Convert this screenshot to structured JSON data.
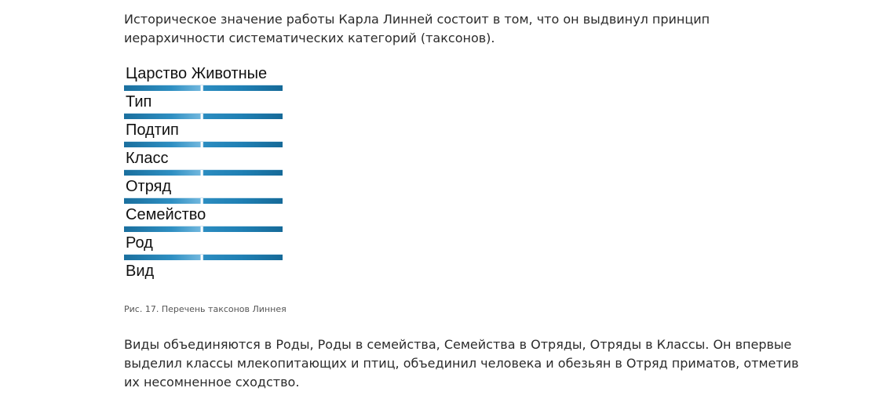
{
  "intro_paragraph": "Историческое значение работы Карла Линней состоит в том, что он выдвинул принцип иерархичности систематических категорий (таксонов).",
  "figure": {
    "taxa": [
      "Царство Животные",
      "Тип",
      "Подтип",
      "Класс",
      "Отряд",
      "Семейство",
      "Род",
      "Вид"
    ],
    "caption": "Рис. 17. Перечень таксонов Линнея"
  },
  "body_paragraph": "Виды объединяются в Роды, Роды в семейства, Семейства в Отряды, Отряды в Классы. Он впервые выделил классы млекопитающих и птиц, объединил человека и обезьян в Отряд приматов, отметив их несомненное сходство."
}
